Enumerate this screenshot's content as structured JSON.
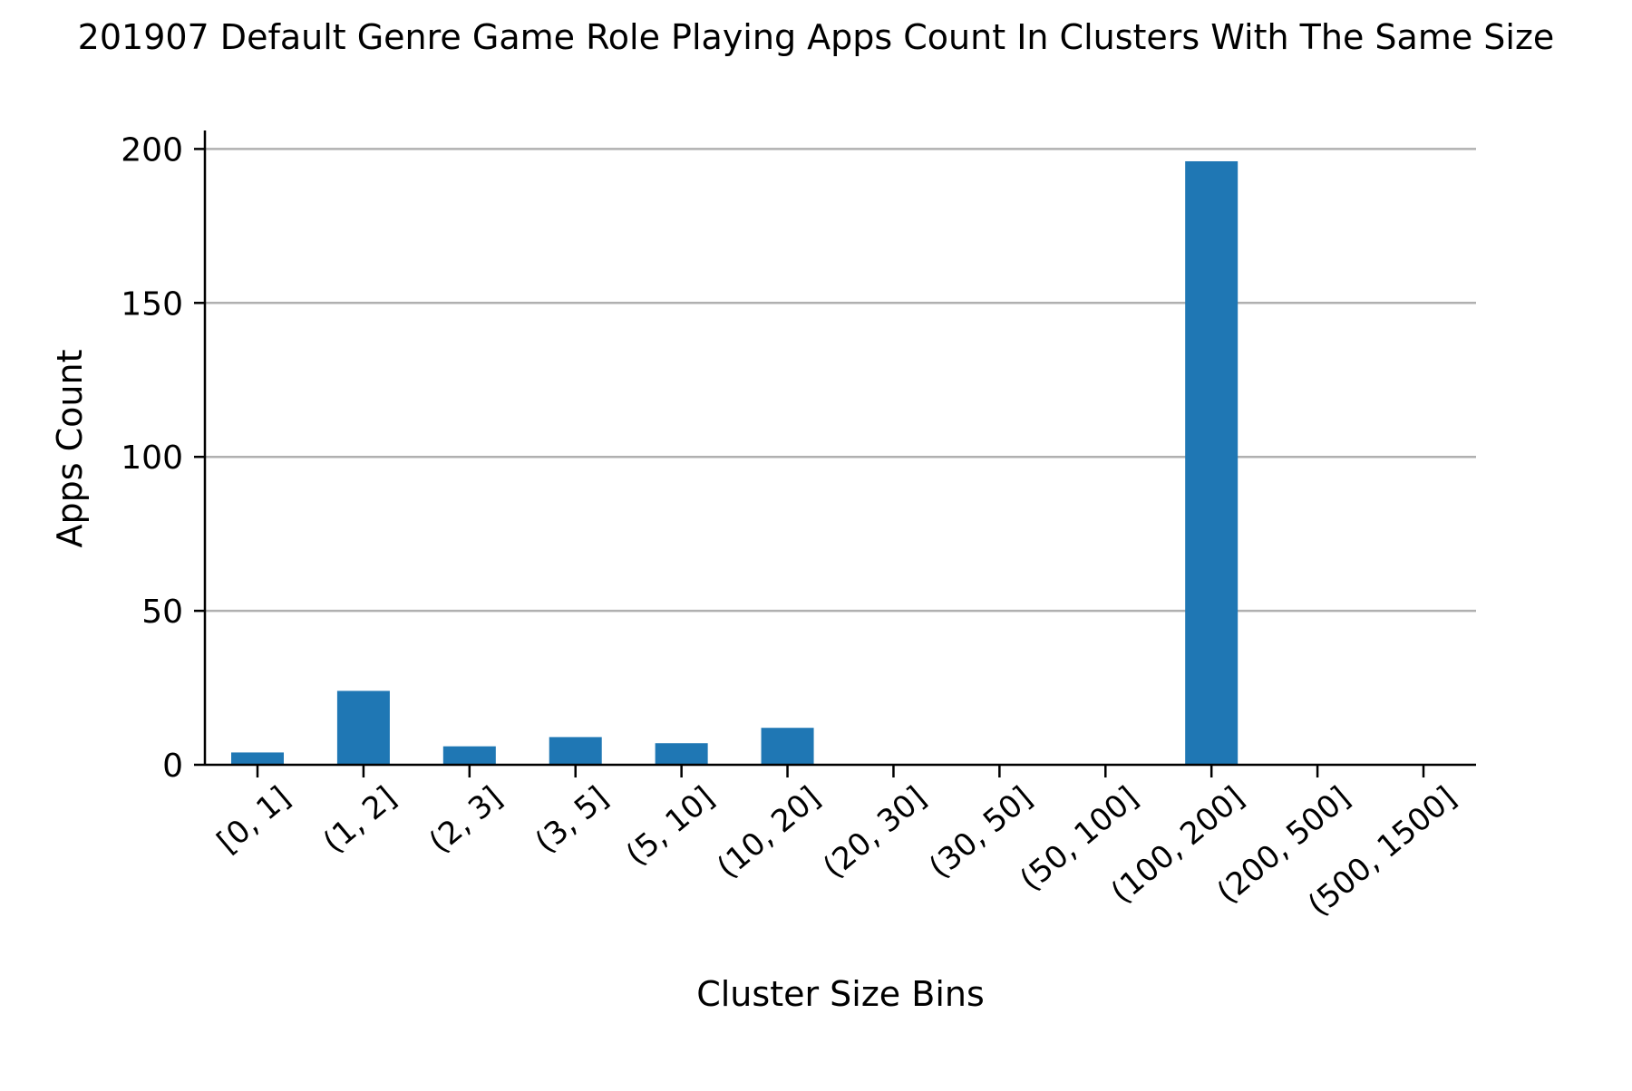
{
  "chart_data": {
    "type": "bar",
    "title": "201907 Default Genre Game Role Playing Apps Count In Clusters With The Same Size",
    "xlabel": "Cluster Size Bins",
    "ylabel": "Apps Count",
    "categories": [
      "[0, 1]",
      "(1, 2]",
      "(2, 3]",
      "(3, 5]",
      "(5, 10]",
      "(10, 20]",
      "(20, 30]",
      "(30, 50]",
      "(50, 100]",
      "(100, 200]",
      "(200, 500]",
      "(500, 1500]"
    ],
    "values": [
      4,
      24,
      6,
      9,
      7,
      12,
      0,
      0,
      0,
      196,
      0,
      0
    ],
    "ylim": [
      0,
      206
    ],
    "yticks": [
      0,
      50,
      100,
      150,
      200
    ],
    "grid": "horizontal",
    "bar_color": "#1f77b4"
  }
}
